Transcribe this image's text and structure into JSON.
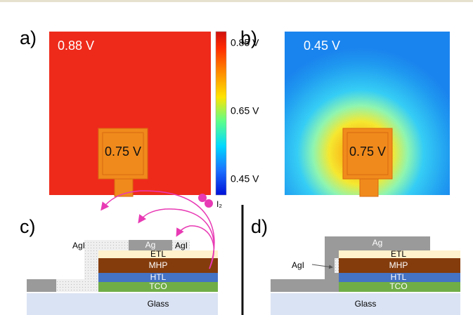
{
  "panel_a": {
    "label": "a)",
    "outer_voltage": "0.88 V",
    "pad_voltage": "0.75 V"
  },
  "colorbar": {
    "ticks": [
      "0.85 V",
      "0.65 V",
      "0.45 V"
    ]
  },
  "panel_b": {
    "label": "b)",
    "outer_voltage": "0.45 V",
    "pad_voltage": "0.75 V"
  },
  "panel_c": {
    "label": "c)",
    "glass": "Glass",
    "tco": "TCO",
    "htl": "HTL",
    "mhp": "MHP",
    "etl": "ETL",
    "ag": "Ag",
    "agi_left": "AgI",
    "agi_right": "AgI",
    "iodine": "I₂"
  },
  "panel_d": {
    "label": "d)",
    "glass": "Glass",
    "tco": "TCO",
    "htl": "HTL",
    "mhp": "MHP",
    "etl": "ETL",
    "ag": "Ag",
    "agi": "AgI"
  }
}
